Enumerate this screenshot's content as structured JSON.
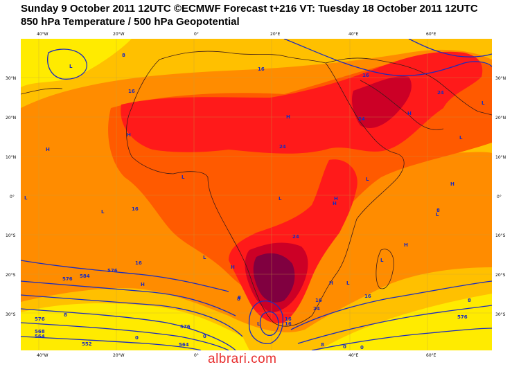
{
  "header": {
    "line1": "Sunday 9 October 2011 12UTC ©ECMWF Forecast t+216 VT: Tuesday 18 October 2011 12UTC",
    "line2": "850 hPa Temperature / 500 hPa Geopotential"
  },
  "axes": {
    "lon_labels": [
      "40°W",
      "20°W",
      "0°",
      "20°E",
      "40°E",
      "60°E"
    ],
    "lat_labels": [
      "30°N",
      "20°N",
      "10°N",
      "0°",
      "10°S",
      "20°S",
      "30°S"
    ]
  },
  "contour_labels": [
    "8",
    "16",
    "16",
    "24",
    "24",
    "24",
    "24",
    "16",
    "16",
    "8",
    "8",
    "0",
    "0",
    "8",
    "8",
    "16",
    "16",
    "24",
    "16",
    "576",
    "576",
    "576",
    "584",
    "576",
    "568",
    "564",
    "552",
    "564",
    "8",
    "0",
    "8",
    "16",
    "0",
    "16",
    "576"
  ],
  "pressure_centers": [
    "L",
    "L",
    "H",
    "H",
    "H",
    "H",
    "L",
    "L",
    "L",
    "H",
    "L",
    "L",
    "L",
    "L",
    "L",
    "L",
    "H",
    "H",
    "H",
    "H",
    "L",
    "H",
    "H",
    "L"
  ],
  "watermark": "albrari.com",
  "colors": {
    "yellow": "#ffeb00",
    "light_orange": "#ffc000",
    "orange": "#ff8c00",
    "dark_orange": "#ff5a00",
    "red": "#ff1a1a",
    "dark_red": "#cc0026",
    "maroon": "#800040",
    "contour": "#1a2bbf",
    "coast": "#3a1a1a"
  }
}
